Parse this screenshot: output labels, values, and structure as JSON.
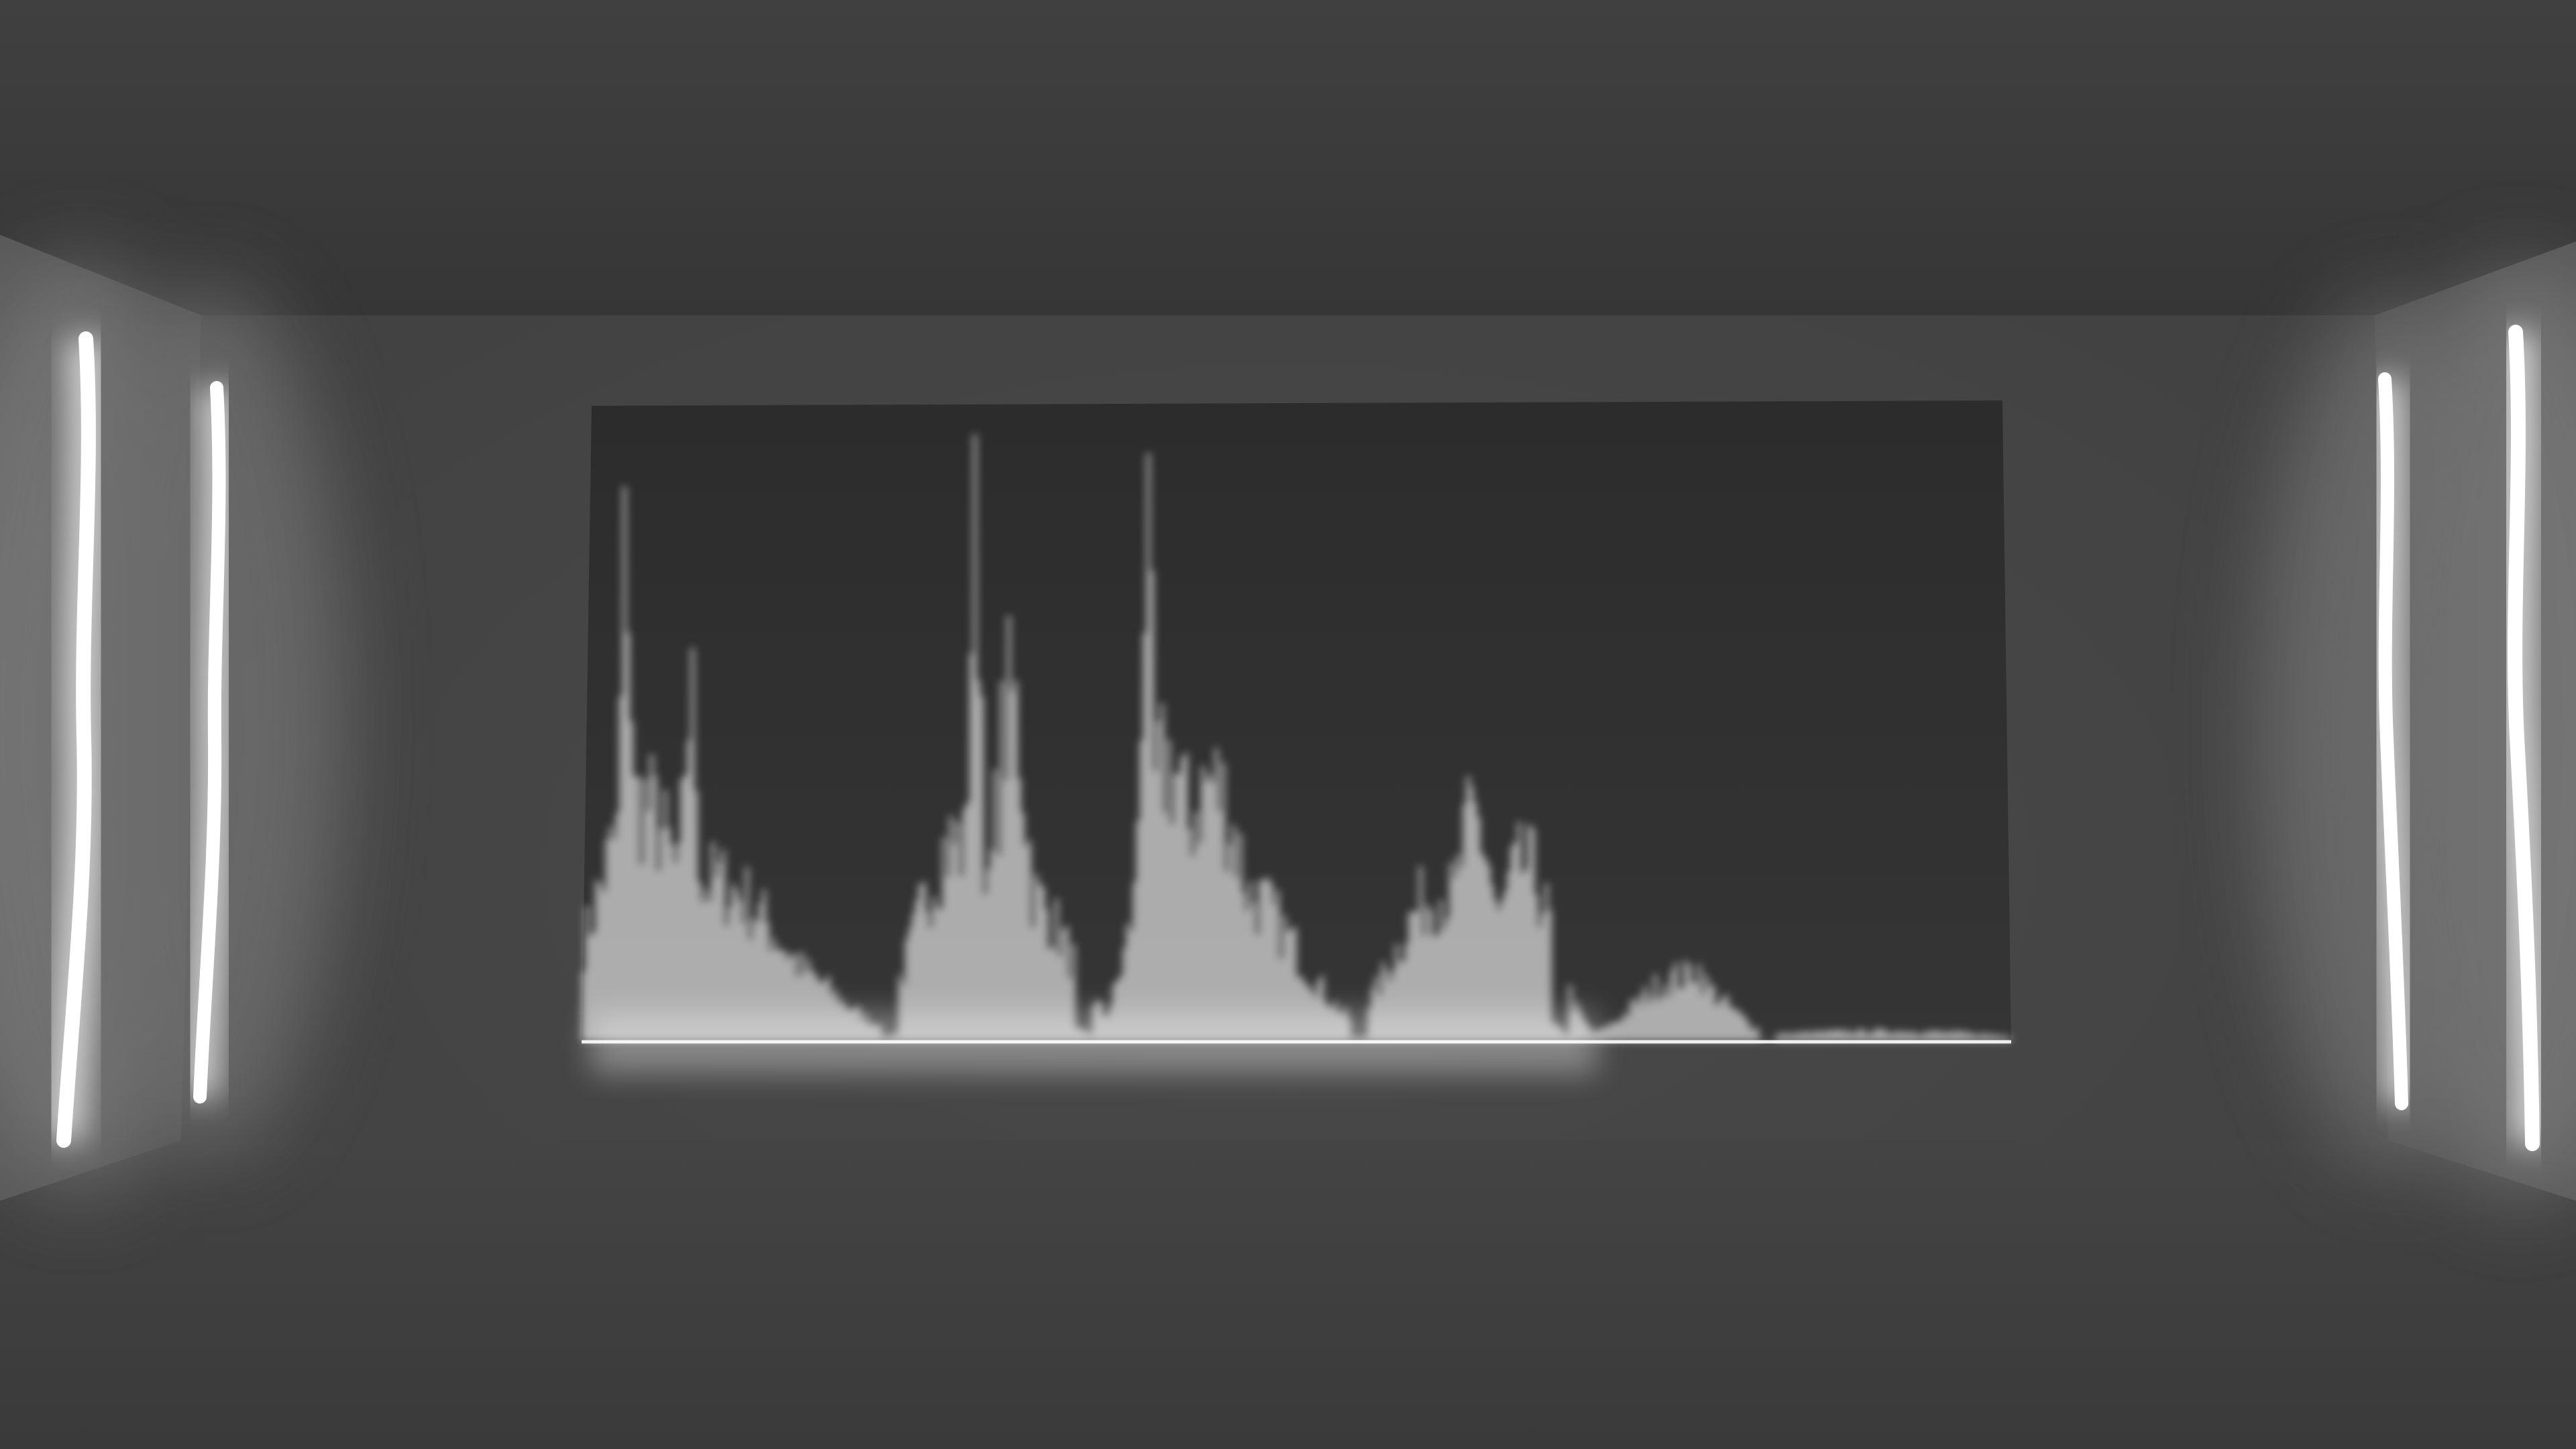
{
  "scene": {
    "kind": "3d-room-audio-visualizer",
    "palette": {
      "ceiling": "#3b3b3b",
      "back_wall": "#474747",
      "side_wall": "#505050",
      "floor": "#434343",
      "screen": "#2f2f2f",
      "light": "#ffffff",
      "glow": "#dcdcdc"
    },
    "light_tubes": [
      {
        "name": "left-outer-light-tube"
      },
      {
        "name": "left-inner-light-tube"
      },
      {
        "name": "right-inner-light-tube"
      },
      {
        "name": "right-outer-light-tube"
      }
    ],
    "spectrum": {
      "peaks": [
        {
          "center": 0.03,
          "height": 1.0,
          "spread": 0.004
        },
        {
          "center": 0.04,
          "height": 0.48,
          "spread": 0.03
        },
        {
          "center": 0.075,
          "height": 0.68,
          "spread": 0.006
        },
        {
          "center": 0.09,
          "height": 0.32,
          "spread": 0.05
        },
        {
          "center": 0.135,
          "height": 0.16,
          "spread": 0.04
        },
        {
          "center": 0.26,
          "height": 0.4,
          "spread": 0.025
        },
        {
          "center": 0.275,
          "height": 1.0,
          "spread": 0.005
        },
        {
          "center": 0.3,
          "height": 0.68,
          "spread": 0.012
        },
        {
          "center": 0.31,
          "height": 0.3,
          "spread": 0.03
        },
        {
          "center": 0.395,
          "height": 0.95,
          "spread": 0.005
        },
        {
          "center": 0.41,
          "height": 0.56,
          "spread": 0.02
        },
        {
          "center": 0.44,
          "height": 0.52,
          "spread": 0.025
        },
        {
          "center": 0.46,
          "height": 0.3,
          "spread": 0.04
        },
        {
          "center": 0.6,
          "height": 0.3,
          "spread": 0.03
        },
        {
          "center": 0.625,
          "height": 0.44,
          "spread": 0.015
        },
        {
          "center": 0.66,
          "height": 0.35,
          "spread": 0.02
        },
        {
          "center": 0.77,
          "height": 0.13,
          "spread": 0.03
        },
        {
          "center": 0.78,
          "height": 0.15,
          "spread": 0.01
        },
        {
          "center": 0.91,
          "height": 0.02,
          "spread": 0.08
        }
      ],
      "gaps": [
        0.215,
        0.35,
        0.545,
        0.685,
        0.83
      ]
    }
  }
}
